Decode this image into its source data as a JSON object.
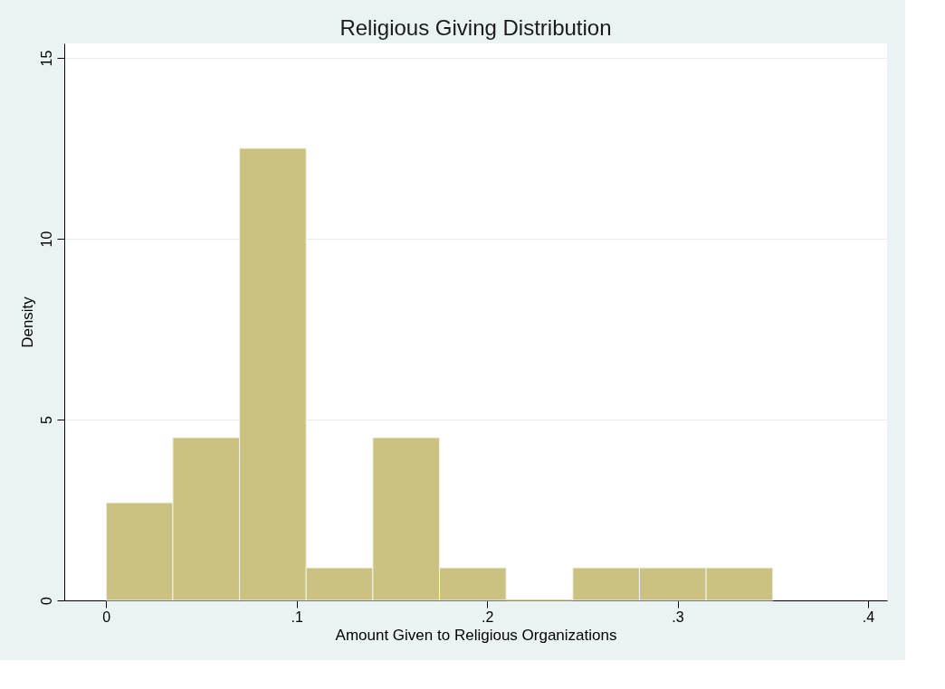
{
  "chart_data": {
    "type": "histogram",
    "title": "Religious Giving Distribution",
    "xlabel": "Amount Given to Religious Organizations",
    "ylabel": "Density",
    "bins": [
      0,
      0.035,
      0.07,
      0.105,
      0.14,
      0.175,
      0.21,
      0.245,
      0.28,
      0.315,
      0.35
    ],
    "values": [
      2.7,
      4.5,
      12.5,
      0.9,
      4.5,
      0.9,
      0,
      0.9,
      0.9,
      0.9
    ],
    "color": "#cbc282",
    "xlim": [
      -0.022,
      0.41
    ],
    "xticks": [
      0,
      {
        "value": 0.1,
        "label": ".1"
      },
      {
        "value": 0.2,
        "label": ".2"
      },
      {
        "value": 0.3,
        "label": ".3"
      },
      {
        "value": 0.4,
        "label": ".4"
      }
    ],
    "ylim": [
      0,
      15.4
    ],
    "yticks": [
      0,
      5,
      10,
      15
    ],
    "grid": "y"
  }
}
